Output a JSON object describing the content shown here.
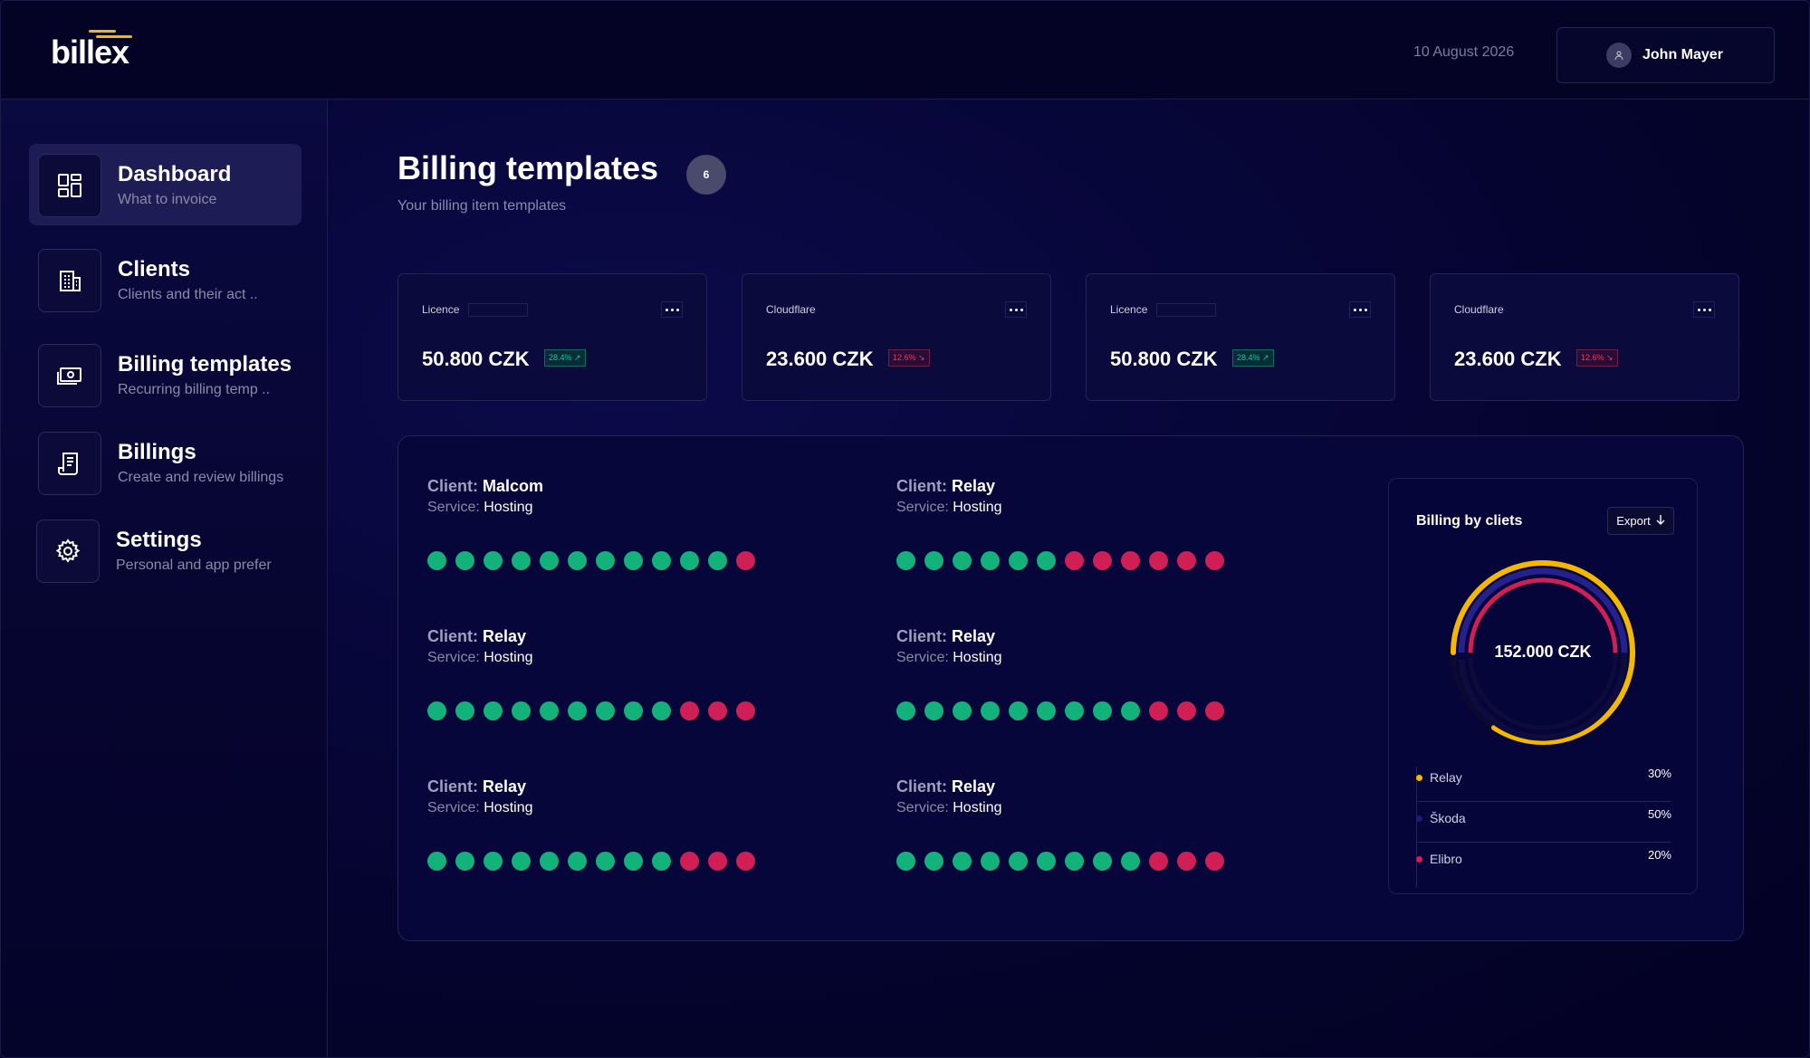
{
  "header": {
    "logo": "billex",
    "date": "10 August 2026",
    "user_name": "John Mayer"
  },
  "sidebar": {
    "items": [
      {
        "title": "Dashboard",
        "subtitle": "What to invoice",
        "icon": "dashboard-icon",
        "active": true
      },
      {
        "title": "Clients",
        "subtitle": "Clients and their act ..",
        "icon": "building-icon",
        "active": false
      },
      {
        "title": "Billing templates",
        "subtitle": "Recurring billing temp ..",
        "icon": "money-icon",
        "active": false
      },
      {
        "title": "Billings",
        "subtitle": "Create and review billings",
        "icon": "receipt-icon",
        "active": false
      },
      {
        "title": "Settings",
        "subtitle": "Personal and app prefer",
        "icon": "gear-icon",
        "active": false
      }
    ]
  },
  "main": {
    "title": "Billing templates",
    "count": "6",
    "subtitle": "Your billing item templates"
  },
  "stats": [
    {
      "label": "Licence",
      "value": "50.800 CZK",
      "change": "28.4%",
      "trend": "up"
    },
    {
      "label": "Cloudflare",
      "value": "23.600 CZK",
      "change": "12.6%",
      "trend": "down"
    },
    {
      "label": "Licence",
      "value": "50.800 CZK",
      "change": "28.4%",
      "trend": "up"
    },
    {
      "label": "Cloudflare",
      "value": "23.600 CZK",
      "change": "12.6%",
      "trend": "down"
    }
  ],
  "entries": [
    {
      "client_label": "Client:",
      "client": "Malcom",
      "service_label": "Service:",
      "service": "Hosting",
      "dots": "gggggggggggr"
    },
    {
      "client_label": "Client:",
      "client": "Relay",
      "service_label": "Service:",
      "service": "Hosting",
      "dots": "ggggggrrrrrr"
    },
    {
      "client_label": "Client:",
      "client": "Relay",
      "service_label": "Service:",
      "service": "Hosting",
      "dots": "gggggggggrrr"
    },
    {
      "client_label": "Client:",
      "client": "Relay",
      "service_label": "Service:",
      "service": "Hosting",
      "dots": "gggggggggrrr"
    },
    {
      "client_label": "Client:",
      "client": "Relay",
      "service_label": "Service:",
      "service": "Hosting",
      "dots": "gggggggggrrr"
    },
    {
      "client_label": "Client:",
      "client": "Relay",
      "service_label": "Service:",
      "service": "Hosting",
      "dots": "gggggggggrrr"
    }
  ],
  "chart": {
    "title": "Billing by cliets",
    "export_label": "Export",
    "center_value": "152.000 CZK",
    "legend": [
      {
        "label": "Relay",
        "value": "30%",
        "color": "#f5b800"
      },
      {
        "label": "Škoda",
        "value": "50%",
        "color": "#1b1b7a"
      },
      {
        "label": "Elibro",
        "value": "20%",
        "color": "#d01f55"
      }
    ]
  },
  "colors": {
    "accent_green": "#13b27b",
    "accent_red": "#d01f55",
    "accent_yellow": "#f5b800"
  }
}
